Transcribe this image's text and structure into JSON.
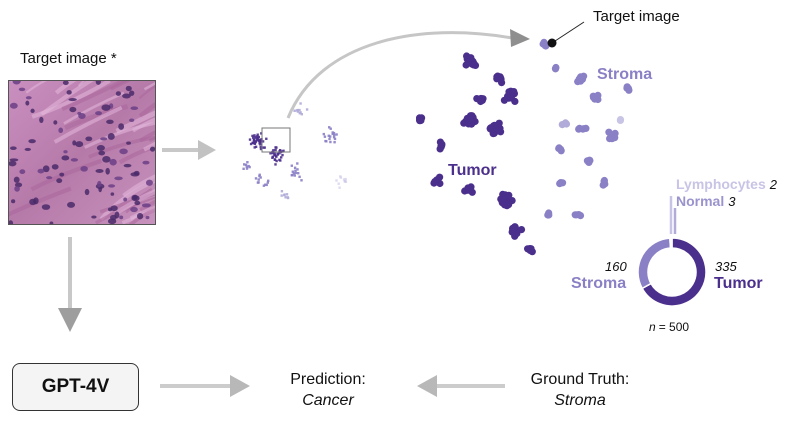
{
  "target_panel": {
    "title": "Target image *",
    "icon": "histology-image-icon"
  },
  "model": {
    "label": "GPT-4V"
  },
  "prediction": {
    "label": "Prediction:",
    "value": "Cancer"
  },
  "ground_truth": {
    "label": "Ground Truth:",
    "value": "Stroma"
  },
  "embedding": {
    "marker_label": "Target image",
    "cluster_labels": {
      "stroma": "Stroma",
      "tumor": "Tumor"
    }
  },
  "chart_data": {
    "type": "pie",
    "categories": [
      "Tumor",
      "Stroma",
      "Normal",
      "Lymphocytes"
    ],
    "values": [
      335,
      160,
      3,
      2
    ],
    "colors": [
      "#4b2f8c",
      "#8a80c6",
      "#b0abd8",
      "#c8c4e6"
    ],
    "total_label": "n = 500",
    "n_symbol": "n",
    "n_value": "= 500"
  },
  "colors": {
    "tumor": "#4b2f8c",
    "stroma": "#8a80c6",
    "normal": "#b0abd8",
    "lymphocytes": "#c8c4e6",
    "arrow": "#b9b9b9"
  }
}
